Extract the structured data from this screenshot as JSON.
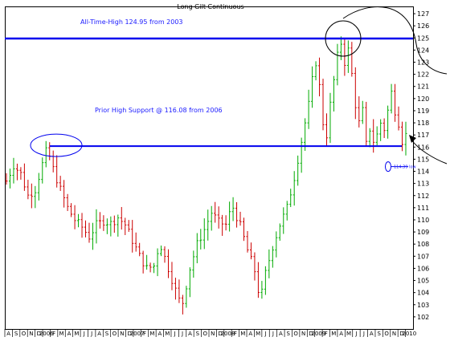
{
  "chart_data": {
    "type": "bar",
    "style": "ohlc",
    "title": "Long Gilt Continuous",
    "xlabel": "",
    "ylabel": "",
    "ylim": [
      101,
      127.6
    ],
    "y_ticks": [
      102,
      103,
      104,
      105,
      106,
      107,
      108,
      109,
      110,
      111,
      112,
      113,
      114,
      115,
      116,
      117,
      118,
      119,
      120,
      121,
      122,
      123,
      124,
      125,
      126,
      127
    ],
    "x_tick_labels": [
      "A",
      "S",
      "O",
      "N",
      "D",
      "2006",
      "F",
      "M",
      "A",
      "M",
      "J",
      "J",
      "A",
      "S",
      "O",
      "N",
      "D",
      "2007",
      "F",
      "M",
      "A",
      "M",
      "J",
      "J",
      "A",
      "S",
      "O",
      "N",
      "D",
      "2008",
      "F",
      "M",
      "A",
      "M",
      "J",
      "J",
      "A",
      "S",
      "O",
      "N",
      "D",
      "2009",
      "F",
      "M",
      "A",
      "M",
      "J",
      "J",
      "A",
      "S",
      "O",
      "N",
      "D",
      "2010"
    ],
    "grid": false,
    "legend": "none",
    "up_color": "#00aa00",
    "down_color": "#cc0000",
    "line_color": "#0000ee",
    "price_path": [
      [
        0,
        113.2
      ],
      [
        2,
        114.5
      ],
      [
        4,
        113.8
      ],
      [
        6,
        112.0
      ],
      [
        8,
        112.5
      ],
      [
        10,
        114.6
      ],
      [
        11,
        115.6
      ],
      [
        12,
        115.2
      ],
      [
        13,
        114.2
      ],
      [
        15,
        112.5
      ],
      [
        17,
        111.0
      ],
      [
        19,
        110.0
      ],
      [
        21,
        109.4
      ],
      [
        23,
        108.6
      ],
      [
        25,
        109.6
      ],
      [
        27,
        109.9
      ],
      [
        29,
        109.7
      ],
      [
        31,
        110.2
      ],
      [
        33,
        109.6
      ],
      [
        35,
        108.3
      ],
      [
        37,
        107.0
      ],
      [
        39,
        106.0
      ],
      [
        41,
        106.2
      ],
      [
        42,
        107.4
      ],
      [
        43,
        107.8
      ],
      [
        45,
        106.0
      ],
      [
        47,
        104.2
      ],
      [
        48,
        103.4
      ],
      [
        49,
        103.2
      ],
      [
        51,
        106.0
      ],
      [
        53,
        108.0
      ],
      [
        55,
        109.2
      ],
      [
        57,
        110.6
      ],
      [
        59,
        109.8
      ],
      [
        61,
        109.6
      ],
      [
        62,
        110.5
      ],
      [
        63,
        111.0
      ],
      [
        65,
        109.5
      ],
      [
        67,
        107.5
      ],
      [
        69,
        105.8
      ],
      [
        70,
        104.2
      ],
      [
        71,
        104.0
      ],
      [
        72,
        105.6
      ],
      [
        74,
        107.8
      ],
      [
        76,
        109.6
      ],
      [
        78,
        111.0
      ],
      [
        80,
        113.5
      ],
      [
        82,
        116.5
      ],
      [
        84,
        119.5
      ],
      [
        85,
        121.5
      ],
      [
        86,
        123.0
      ],
      [
        87,
        121.0
      ],
      [
        88,
        118.0
      ],
      [
        89,
        117.0
      ],
      [
        90,
        119.5
      ],
      [
        91,
        121.5
      ],
      [
        92,
        123.5
      ],
      [
        93,
        124.6
      ],
      [
        94,
        123.0
      ],
      [
        95,
        124.0
      ],
      [
        96,
        122.0
      ],
      [
        97,
        119.5
      ],
      [
        98,
        118.0
      ],
      [
        99,
        119.0
      ],
      [
        100,
        116.2
      ],
      [
        101,
        117.5
      ],
      [
        102,
        116.5
      ],
      [
        103,
        117.0
      ],
      [
        104,
        118.0
      ],
      [
        105,
        117.5
      ],
      [
        106,
        119.0
      ],
      [
        107,
        120.5
      ],
      [
        108,
        119.0
      ],
      [
        109,
        118.0
      ],
      [
        110,
        116.5
      ],
      [
        111,
        117.0
      ]
    ],
    "bar_count": 112,
    "horizontal_lines": [
      {
        "value": 124.95,
        "label": "All-Time-High 124.95 from 2003"
      },
      {
        "value": 116.08,
        "label": "Prior High Support @ 116.08 from 2006"
      }
    ],
    "annotations": [
      {
        "text": "114.39 low",
        "value": 114.39
      }
    ]
  }
}
